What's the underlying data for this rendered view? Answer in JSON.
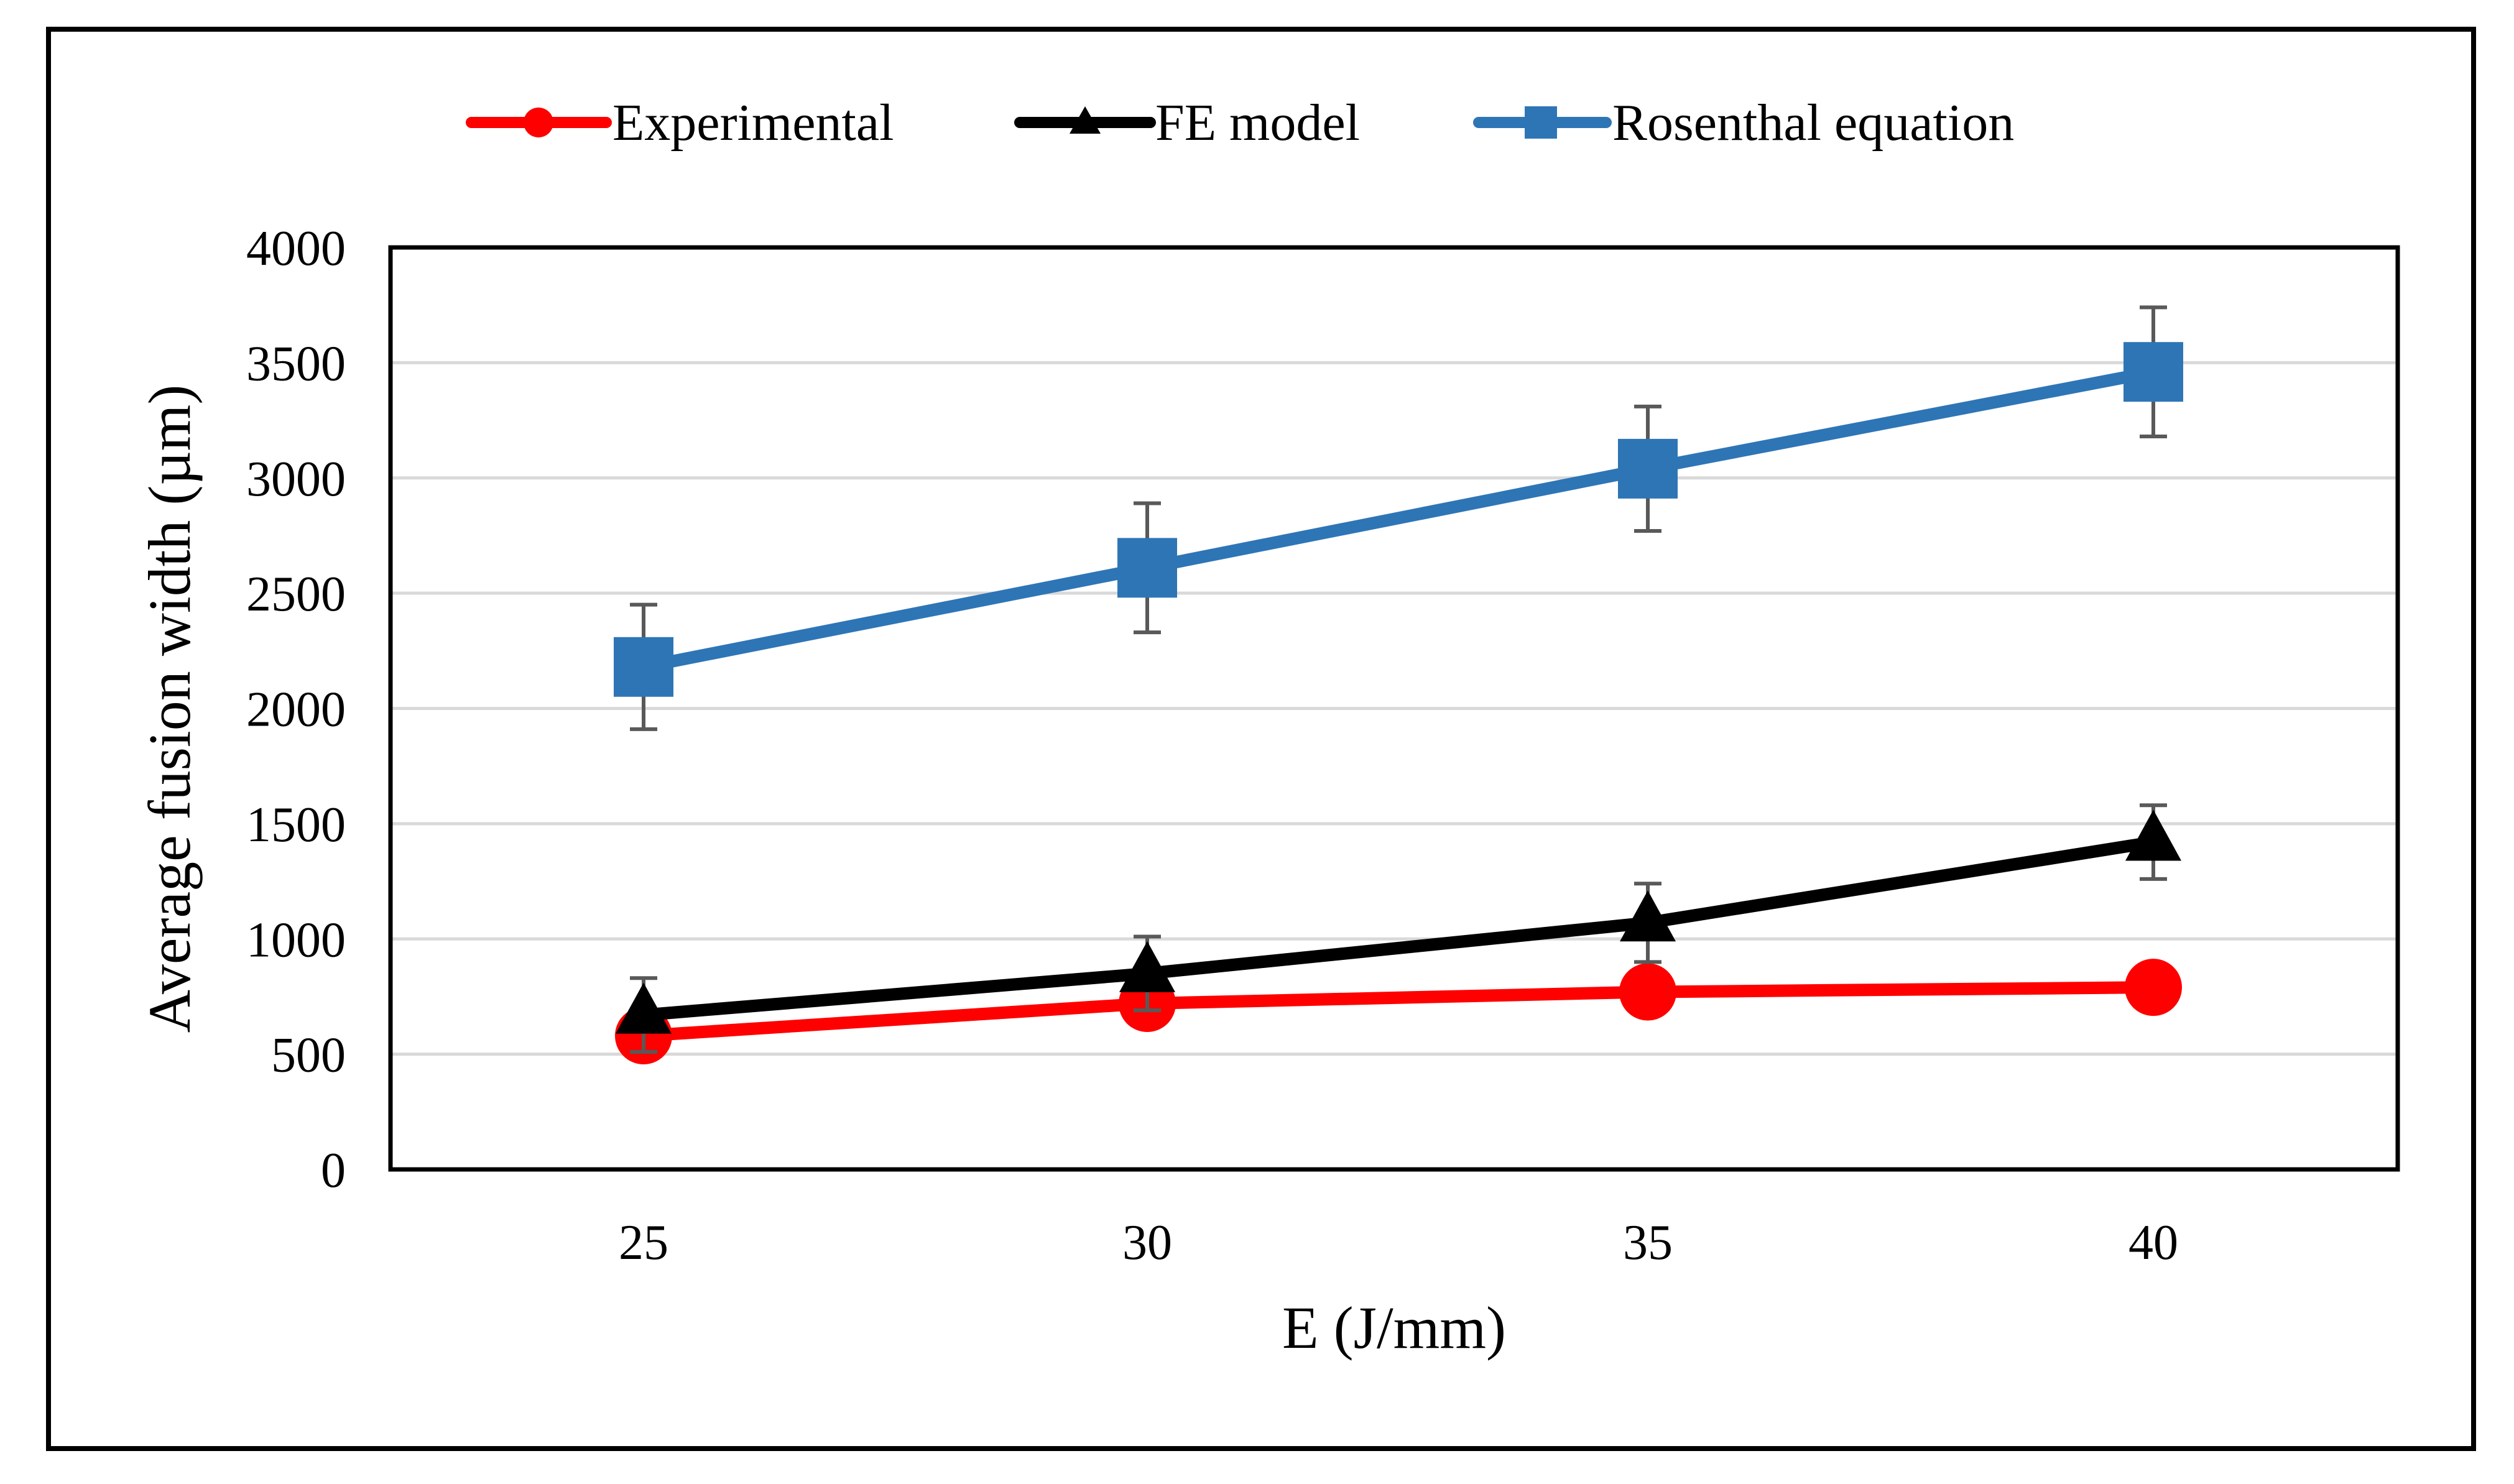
{
  "chart_data": {
    "type": "line",
    "title": "",
    "xlabel": "E (J/mm)",
    "ylabel": "Average  fusion width (µm)",
    "categories": [
      "25",
      "30",
      "35",
      "40"
    ],
    "x": [
      25,
      30,
      35,
      40
    ],
    "ylim": [
      0,
      4000
    ],
    "yticks": [
      0,
      500,
      1000,
      1500,
      2000,
      2500,
      3000,
      3500,
      4000
    ],
    "ytick_labels": [
      "0",
      "500",
      "1000",
      "1500",
      "2000",
      "2500",
      "3000",
      "3500",
      "4000"
    ],
    "grid": true,
    "legend_position": "top",
    "series": [
      {
        "name": "Experimental",
        "marker": "circle",
        "color": "#ff0000",
        "values": [
          580,
          720,
          770,
          790
        ],
        "error": [
          0,
          0,
          0,
          0
        ]
      },
      {
        "name": "FE model",
        "marker": "triangle",
        "color": "#000000",
        "values": [
          670,
          850,
          1070,
          1420
        ],
        "error": [
          160,
          160,
          170,
          160
        ]
      },
      {
        "name": "Rosenthal equation",
        "marker": "square",
        "color": "#2e75b6",
        "values": [
          2180,
          2610,
          3040,
          3460
        ],
        "error": [
          270,
          280,
          270,
          280
        ]
      }
    ]
  },
  "colors": {
    "grid": "#d9d9d9",
    "axis": "#000000",
    "error_bar": "#595959",
    "background": "#ffffff"
  }
}
